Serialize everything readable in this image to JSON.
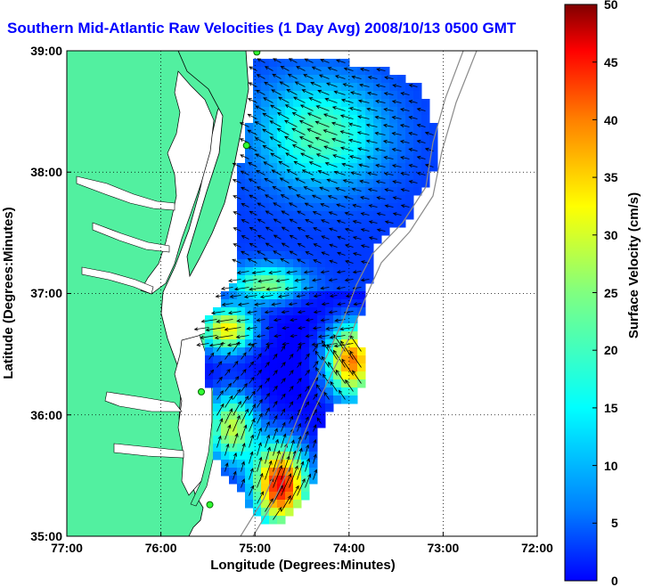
{
  "title": "Southern Mid-Atlantic Raw Velocities (1 Day Avg) 2008/10/13 0500 GMT",
  "map": {
    "xlabel": "Longitude (Degrees:Minutes)",
    "ylabel": "Latitude (Degrees:Minutes)",
    "x_ticks": [
      "77:00",
      "76:00",
      "75:00",
      "74:00",
      "73:00",
      "72:00"
    ],
    "y_ticks": [
      "39:00",
      "38:00",
      "37:00",
      "36:00",
      "35:00"
    ],
    "lon_range": [
      -77,
      -72
    ],
    "lat_range": [
      35,
      39
    ],
    "land_color": "#52f0a0",
    "grid": "dotted"
  },
  "colorbar": {
    "label": "Surface Velocity (cm/s)",
    "ticks": [
      "50",
      "45",
      "40",
      "35",
      "30",
      "25",
      "20",
      "15",
      "10",
      "5",
      "0"
    ],
    "min": 0,
    "max": 50,
    "colormap": "jet"
  },
  "stations": [
    {
      "lon": -74.98,
      "lat": 38.99
    },
    {
      "lon": -75.09,
      "lat": 38.22
    },
    {
      "lon": -75.57,
      "lat": 36.19
    },
    {
      "lon": -75.48,
      "lat": 35.26
    }
  ]
}
